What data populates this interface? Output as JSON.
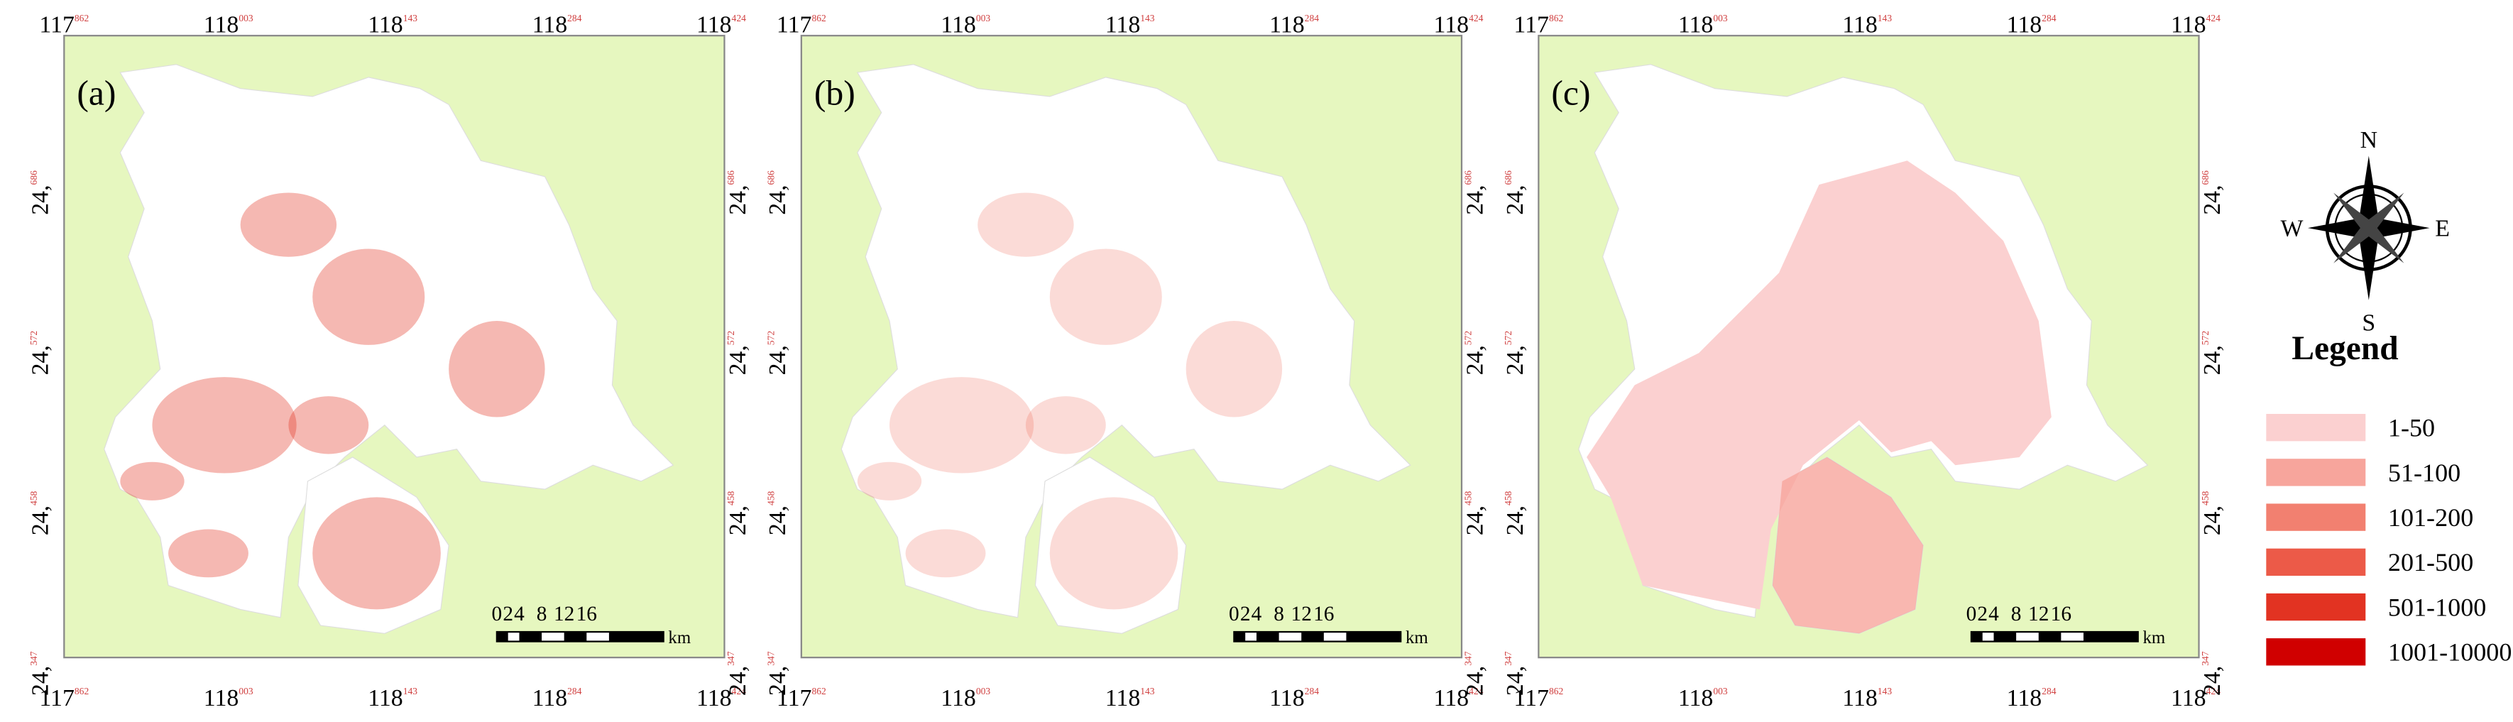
{
  "panels": [
    {
      "label": "(a)"
    },
    {
      "label": "(b)"
    },
    {
      "label": "(c)"
    }
  ],
  "top_ticks": [
    {
      "deg": "117",
      "min": "862"
    },
    {
      "deg": "118",
      "min": "003"
    },
    {
      "deg": "118",
      "min": "143"
    },
    {
      "deg": "118",
      "min": "284"
    },
    {
      "deg": "118",
      "min": "424"
    }
  ],
  "side_ticks": [
    {
      "deg": "24,",
      "min": "686"
    },
    {
      "deg": "24,",
      "min": "572"
    },
    {
      "deg": "24,",
      "min": "458"
    },
    {
      "deg": "24,",
      "min": "347"
    }
  ],
  "scale_bar": {
    "numbers": [
      "0",
      "2",
      "4",
      "8",
      "12",
      "16"
    ],
    "unit": "km"
  },
  "compass": {
    "n": "N",
    "s": "S",
    "e": "E",
    "w": "W"
  },
  "legend": {
    "title": "Legend",
    "items": [
      "1-50",
      "51-100",
      "101-200",
      "201-500",
      "501-1000",
      "1001-10000"
    ],
    "colors": [
      "#fbd0d0",
      "#f7a59c",
      "#f28070",
      "#ec5a48",
      "#e23322",
      "#d00000"
    ]
  }
}
